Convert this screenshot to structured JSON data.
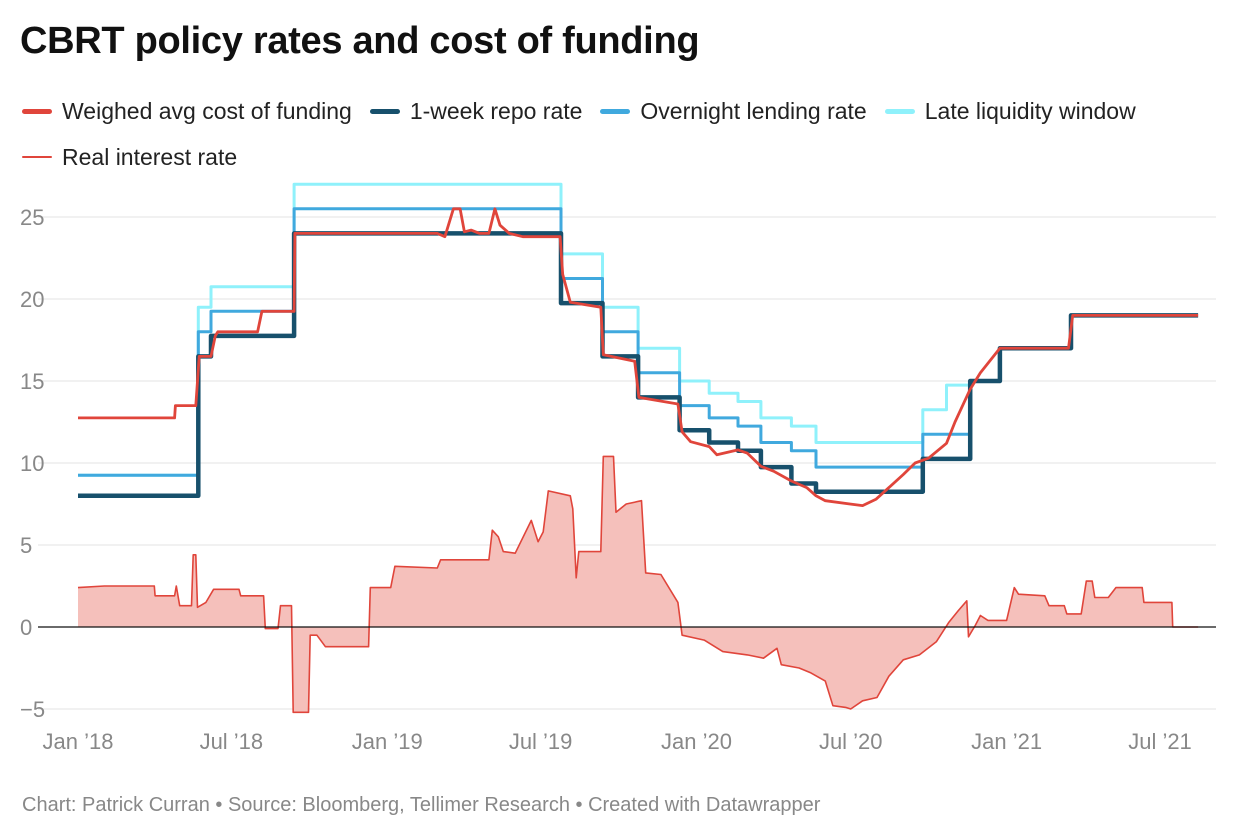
{
  "title": "CBRT policy rates and cost of funding",
  "footer": "Chart: Patrick Curran • Source: Bloomberg, Tellimer Research • Created with Datawrapper",
  "legend": [
    {
      "label": "Weighed avg cost of funding",
      "color": "#e0453b"
    },
    {
      "label": "1-week repo rate",
      "color": "#17506c"
    },
    {
      "label": "Overnight lending rate",
      "color": "#40a9de"
    },
    {
      "label": "Late liquidity window",
      "color": "#8ff1fb"
    },
    {
      "label": "Real interest rate",
      "color": "#e0453b"
    }
  ],
  "chart_data": {
    "type": "line",
    "x_axis": {
      "type": "date",
      "ticks": [
        "Jan ’18",
        "Jul ’18",
        "Jan ’19",
        "Jul ’19",
        "Jan ’20",
        "Jul ’20",
        "Jan ’21",
        "Jul ’21"
      ]
    },
    "y_axis": {
      "ticks": [
        "−5",
        "0",
        "5",
        "10",
        "15",
        "20",
        "25"
      ],
      "ylim": [
        -5,
        27
      ],
      "grid": true
    },
    "series": [
      {
        "name": "Late liquidity window",
        "type": "step",
        "color": "#8ff1fb",
        "points": [
          [
            "2018-01-01",
            9.25
          ],
          [
            "2018-05-23",
            19.5
          ],
          [
            "2018-06-07",
            20.75
          ],
          [
            "2018-09-13",
            27
          ],
          [
            "2019-07-25",
            22.75
          ],
          [
            "2019-09-12",
            19.5
          ],
          [
            "2019-10-24",
            17
          ],
          [
            "2019-12-12",
            15
          ],
          [
            "2020-01-16",
            14.25
          ],
          [
            "2020-02-19",
            13.75
          ],
          [
            "2020-03-17",
            12.75
          ],
          [
            "2020-04-22",
            12.25
          ],
          [
            "2020-05-21",
            11.25
          ],
          [
            "2020-09-24",
            13.25
          ],
          [
            "2020-10-22",
            14.75
          ],
          [
            "2020-11-19",
            15
          ]
        ]
      },
      {
        "name": "Overnight lending rate",
        "type": "step",
        "color": "#40a9de",
        "points": [
          [
            "2018-01-01",
            9.25
          ],
          [
            "2018-05-23",
            18
          ],
          [
            "2018-06-07",
            19.25
          ],
          [
            "2018-09-13",
            25.5
          ],
          [
            "2019-07-25",
            21.25
          ],
          [
            "2019-09-12",
            18
          ],
          [
            "2019-10-24",
            15.5
          ],
          [
            "2019-12-12",
            13.5
          ],
          [
            "2020-01-16",
            12.75
          ],
          [
            "2020-02-19",
            12.25
          ],
          [
            "2020-03-17",
            11.25
          ],
          [
            "2020-04-22",
            10.75
          ],
          [
            "2020-05-21",
            9.75
          ],
          [
            "2020-09-24",
            11.75
          ],
          [
            "2020-10-22",
            11.75
          ],
          [
            "2020-11-19",
            15
          ]
        ]
      },
      {
        "name": "1-week repo rate",
        "type": "step",
        "color": "#17506c",
        "points": [
          [
            "2018-01-01",
            8
          ],
          [
            "2018-05-23",
            16.5
          ],
          [
            "2018-06-07",
            17.75
          ],
          [
            "2018-09-13",
            24
          ],
          [
            "2019-07-25",
            19.75
          ],
          [
            "2019-09-12",
            16.5
          ],
          [
            "2019-10-24",
            14
          ],
          [
            "2019-12-12",
            12
          ],
          [
            "2020-01-16",
            11.25
          ],
          [
            "2020-02-19",
            10.75
          ],
          [
            "2020-03-17",
            9.75
          ],
          [
            "2020-04-22",
            8.75
          ],
          [
            "2020-05-21",
            8.25
          ],
          [
            "2020-09-24",
            10.25
          ],
          [
            "2020-11-19",
            15
          ],
          [
            "2020-12-24",
            17
          ],
          [
            "2021-03-18",
            19
          ],
          [
            "2021-08-15",
            19
          ]
        ]
      },
      {
        "name": "Weighed avg cost of funding",
        "type": "line",
        "color": "#e0453b",
        "points": [
          [
            "2018-01-01",
            12.75
          ],
          [
            "2018-04-25",
            12.75
          ],
          [
            "2018-04-26",
            13.5
          ],
          [
            "2018-05-20",
            13.5
          ],
          [
            "2018-05-24",
            16.5
          ],
          [
            "2018-06-07",
            16.5
          ],
          [
            "2018-06-12",
            17.75
          ],
          [
            "2018-06-15",
            18
          ],
          [
            "2018-08-01",
            18
          ],
          [
            "2018-08-06",
            19.25
          ],
          [
            "2018-09-13",
            19.25
          ],
          [
            "2018-09-14",
            24
          ],
          [
            "2019-03-01",
            24
          ],
          [
            "2019-03-10",
            23.8
          ],
          [
            "2019-03-20",
            25.5
          ],
          [
            "2019-03-28",
            25.5
          ],
          [
            "2019-04-02",
            24.1
          ],
          [
            "2019-04-10",
            24.2
          ],
          [
            "2019-04-20",
            24
          ],
          [
            "2019-05-01",
            24
          ],
          [
            "2019-05-08",
            25.5
          ],
          [
            "2019-05-14",
            24.5
          ],
          [
            "2019-05-25",
            24
          ],
          [
            "2019-06-10",
            23.8
          ],
          [
            "2019-07-24",
            23.8
          ],
          [
            "2019-07-27",
            21.5
          ],
          [
            "2019-08-05",
            19.8
          ],
          [
            "2019-09-10",
            19.5
          ],
          [
            "2019-09-13",
            16.6
          ],
          [
            "2019-10-20",
            16.2
          ],
          [
            "2019-10-25",
            14
          ],
          [
            "2019-12-10",
            13.6
          ],
          [
            "2019-12-15",
            11.9
          ],
          [
            "2019-12-25",
            11.3
          ],
          [
            "2020-01-16",
            11
          ],
          [
            "2020-01-25",
            10.5
          ],
          [
            "2020-02-19",
            10.8
          ],
          [
            "2020-03-01",
            10.6
          ],
          [
            "2020-03-17",
            9.8
          ],
          [
            "2020-04-01",
            9.5
          ],
          [
            "2020-04-22",
            8.9
          ],
          [
            "2020-05-10",
            8.5
          ],
          [
            "2020-05-21",
            8
          ],
          [
            "2020-06-01",
            7.7
          ],
          [
            "2020-06-30",
            7.5
          ],
          [
            "2020-07-15",
            7.4
          ],
          [
            "2020-07-31",
            7.8
          ],
          [
            "2020-08-15",
            8.5
          ],
          [
            "2020-09-01",
            9.3
          ],
          [
            "2020-09-15",
            10
          ],
          [
            "2020-10-01",
            10.3
          ],
          [
            "2020-10-22",
            11.2
          ],
          [
            "2020-11-01",
            12.5
          ],
          [
            "2020-11-19",
            14.5
          ],
          [
            "2020-12-01",
            15.5
          ],
          [
            "2020-12-24",
            17
          ],
          [
            "2021-03-15",
            17
          ],
          [
            "2021-03-20",
            19
          ],
          [
            "2021-08-15",
            19
          ]
        ]
      }
    ],
    "area_series": {
      "name": "Real interest rate",
      "type": "area",
      "color": "#e0453b",
      "fill": "#f5c0bb",
      "points": [
        [
          "2018-01-01",
          2.4
        ],
        [
          "2018-02-01",
          2.5
        ],
        [
          "2018-04-01",
          2.5
        ],
        [
          "2018-04-02",
          1.9
        ],
        [
          "2018-04-25",
          1.9
        ],
        [
          "2018-04-27",
          2.5
        ],
        [
          "2018-05-01",
          1.3
        ],
        [
          "2018-05-15",
          1.3
        ],
        [
          "2018-05-17",
          4.4
        ],
        [
          "2018-05-20",
          4.4
        ],
        [
          "2018-05-22",
          1.2
        ],
        [
          "2018-06-01",
          1.5
        ],
        [
          "2018-06-10",
          2.3
        ],
        [
          "2018-07-10",
          2.3
        ],
        [
          "2018-07-12",
          1.9
        ],
        [
          "2018-08-08",
          1.9
        ],
        [
          "2018-08-10",
          -0.1
        ],
        [
          "2018-08-25",
          -0.1
        ],
        [
          "2018-08-28",
          1.3
        ],
        [
          "2018-09-10",
          1.3
        ],
        [
          "2018-09-12",
          -5.2
        ],
        [
          "2018-09-30",
          -5.2
        ],
        [
          "2018-10-02",
          -0.5
        ],
        [
          "2018-10-10",
          -0.5
        ],
        [
          "2018-10-20",
          -1.2
        ],
        [
          "2018-12-10",
          -1.2
        ],
        [
          "2018-12-12",
          2.4
        ],
        [
          "2019-01-05",
          2.4
        ],
        [
          "2019-01-10",
          3.7
        ],
        [
          "2019-03-01",
          3.6
        ],
        [
          "2019-03-05",
          4.1
        ],
        [
          "2019-05-01",
          4.1
        ],
        [
          "2019-05-05",
          5.9
        ],
        [
          "2019-05-12",
          5.5
        ],
        [
          "2019-05-18",
          4.6
        ],
        [
          "2019-06-01",
          4.5
        ],
        [
          "2019-06-20",
          6.5
        ],
        [
          "2019-06-28",
          5.2
        ],
        [
          "2019-07-04",
          5.8
        ],
        [
          "2019-07-10",
          8.3
        ],
        [
          "2019-08-05",
          8
        ],
        [
          "2019-08-08",
          7.2
        ],
        [
          "2019-08-12",
          3
        ],
        [
          "2019-08-15",
          4.6
        ],
        [
          "2019-09-10",
          4.6
        ],
        [
          "2019-09-13",
          10.4
        ],
        [
          "2019-09-25",
          10.4
        ],
        [
          "2019-09-28",
          7
        ],
        [
          "2019-10-10",
          7.5
        ],
        [
          "2019-10-28",
          7.7
        ],
        [
          "2019-11-02",
          3.3
        ],
        [
          "2019-11-20",
          3.2
        ],
        [
          "2019-12-10",
          1.5
        ],
        [
          "2019-12-15",
          -0.5
        ],
        [
          "2020-01-10",
          -0.8
        ],
        [
          "2020-02-01",
          -1.5
        ],
        [
          "2020-03-01",
          -1.7
        ],
        [
          "2020-03-20",
          -1.9
        ],
        [
          "2020-04-05",
          -1.3
        ],
        [
          "2020-04-10",
          -2.3
        ],
        [
          "2020-05-01",
          -2.5
        ],
        [
          "2020-05-15",
          -2.8
        ],
        [
          "2020-06-01",
          -3.3
        ],
        [
          "2020-06-10",
          -4.8
        ],
        [
          "2020-06-25",
          -4.9
        ],
        [
          "2020-07-01",
          -5
        ],
        [
          "2020-07-15",
          -4.5
        ],
        [
          "2020-08-01",
          -4.3
        ],
        [
          "2020-08-15",
          -3
        ],
        [
          "2020-09-01",
          -2
        ],
        [
          "2020-09-20",
          -1.7
        ],
        [
          "2020-10-10",
          -0.9
        ],
        [
          "2020-10-25",
          0.3
        ],
        [
          "2020-11-05",
          1
        ],
        [
          "2020-11-15",
          1.6
        ],
        [
          "2020-11-17",
          -0.6
        ],
        [
          "2020-11-25",
          0.1
        ],
        [
          "2020-12-01",
          0.7
        ],
        [
          "2020-12-10",
          0.4
        ],
        [
          "2021-01-01",
          0.4
        ],
        [
          "2021-01-10",
          2.4
        ],
        [
          "2021-01-15",
          2
        ],
        [
          "2021-02-15",
          1.9
        ],
        [
          "2021-02-20",
          1.3
        ],
        [
          "2021-03-10",
          1.3
        ],
        [
          "2021-03-13",
          0.8
        ],
        [
          "2021-03-30",
          0.8
        ],
        [
          "2021-04-05",
          2.8
        ],
        [
          "2021-04-12",
          2.8
        ],
        [
          "2021-04-15",
          1.8
        ],
        [
          "2021-05-01",
          1.8
        ],
        [
          "2021-05-10",
          2.4
        ],
        [
          "2021-06-10",
          2.4
        ],
        [
          "2021-06-12",
          1.5
        ],
        [
          "2021-07-15",
          1.5
        ],
        [
          "2021-07-16",
          0
        ],
        [
          "2021-08-15",
          0
        ]
      ]
    }
  }
}
